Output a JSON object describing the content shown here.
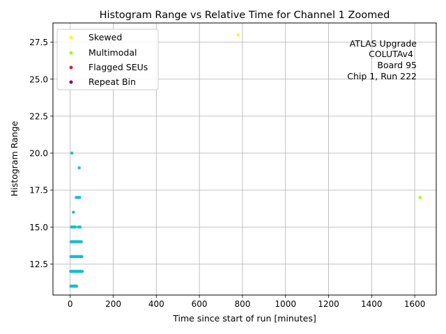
{
  "chart_data": {
    "type": "scatter",
    "title": "Histogram Range vs Relative Time for Channel 1 Zoomed",
    "xlabel": "Time since start of run [minutes]",
    "ylabel": "Histogram Range",
    "xlim": [
      -80,
      1700
    ],
    "ylim": [
      10.4,
      28.8
    ],
    "xticks": [
      0,
      200,
      400,
      600,
      800,
      1000,
      1200,
      1400,
      1600
    ],
    "xtick_labels": [
      "0",
      "200",
      "400",
      "600",
      "800",
      "1000",
      "1200",
      "1400",
      "1600"
    ],
    "yticks": [
      12.5,
      15.0,
      17.5,
      20.0,
      22.5,
      25.0,
      27.5
    ],
    "ytick_labels": [
      "12.5",
      "15.0",
      "17.5",
      "20.0",
      "22.5",
      "25.0",
      "27.5"
    ],
    "grid": true,
    "legend_position": "top-left",
    "annotation": [
      "ATLAS Upgrade",
      "COLUTAv4",
      "Board 95",
      "Chip 1, Run 222"
    ],
    "series": [
      {
        "name": "Skewed",
        "color": "#ffff00",
        "points": [
          [
            780,
            28
          ]
        ]
      },
      {
        "name": "Multimodal",
        "color": "#9aff00",
        "points": [
          [
            1625,
            17
          ]
        ]
      },
      {
        "name": "Flagged SEUs",
        "color": "#d62728",
        "points": []
      },
      {
        "name": "Repeat Bin",
        "color": "#800080",
        "points": []
      },
      {
        "color": "#17becf",
        "points": [
          [
            3,
            11
          ],
          [
            7,
            11
          ],
          [
            10,
            11
          ],
          [
            14,
            11
          ],
          [
            18,
            11
          ],
          [
            22,
            11
          ],
          [
            26,
            11
          ],
          [
            30,
            11
          ],
          [
            2,
            12
          ],
          [
            5,
            12
          ],
          [
            8,
            12
          ],
          [
            11,
            12
          ],
          [
            14,
            12
          ],
          [
            17,
            12
          ],
          [
            20,
            12
          ],
          [
            23,
            12
          ],
          [
            26,
            12
          ],
          [
            29,
            12
          ],
          [
            32,
            12
          ],
          [
            35,
            12
          ],
          [
            38,
            12
          ],
          [
            41,
            12
          ],
          [
            44,
            12
          ],
          [
            47,
            12
          ],
          [
            50,
            12
          ],
          [
            53,
            12
          ],
          [
            56,
            12
          ],
          [
            3,
            13
          ],
          [
            6,
            13
          ],
          [
            9,
            13
          ],
          [
            12,
            13
          ],
          [
            15,
            13
          ],
          [
            18,
            13
          ],
          [
            21,
            13
          ],
          [
            24,
            13
          ],
          [
            27,
            13
          ],
          [
            30,
            13
          ],
          [
            33,
            13
          ],
          [
            36,
            13
          ],
          [
            39,
            13
          ],
          [
            42,
            13
          ],
          [
            45,
            13
          ],
          [
            48,
            13
          ],
          [
            51,
            13
          ],
          [
            54,
            13
          ],
          [
            4,
            14
          ],
          [
            8,
            14
          ],
          [
            12,
            14
          ],
          [
            16,
            14
          ],
          [
            20,
            14
          ],
          [
            24,
            14
          ],
          [
            28,
            14
          ],
          [
            32,
            14
          ],
          [
            36,
            14
          ],
          [
            40,
            14
          ],
          [
            44,
            14
          ],
          [
            48,
            14
          ],
          [
            52,
            14
          ],
          [
            6,
            15
          ],
          [
            12,
            15
          ],
          [
            18,
            15
          ],
          [
            24,
            15
          ],
          [
            38,
            15
          ],
          [
            46,
            15
          ],
          [
            15,
            16
          ],
          [
            28,
            17
          ],
          [
            36,
            17
          ],
          [
            44,
            17
          ],
          [
            42,
            19
          ],
          [
            8,
            20
          ]
        ]
      }
    ]
  }
}
